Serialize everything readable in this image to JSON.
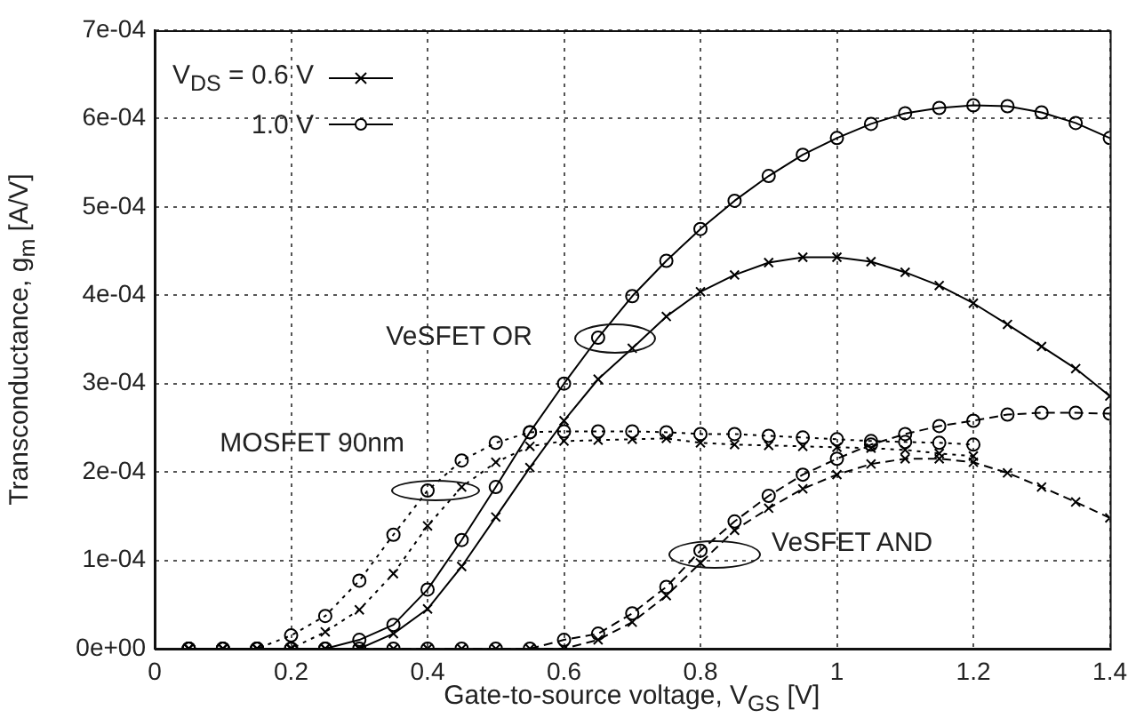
{
  "chart_data": {
    "type": "line",
    "xlabel": "Gate-to-source voltage, V$_{GS}$ [V]",
    "ylabel": "Transconductance, g$_{m}$ [A/V]",
    "x": [
      0.05,
      0.1,
      0.15,
      0.2,
      0.25,
      0.3,
      0.35,
      0.4,
      0.45,
      0.5,
      0.55,
      0.6,
      0.65,
      0.7,
      0.75,
      0.8,
      0.85,
      0.9,
      0.95,
      1.0,
      1.05,
      1.1,
      1.15,
      1.2,
      1.25,
      1.3,
      1.35,
      1.4
    ],
    "series": [
      {
        "name": "V$_{DS}$ = 0.6 V",
        "color": "#000000",
        "marker": "cross",
        "line_style": "solid",
        "values": [
          0,
          0,
          0,
          0,
          0,
          0,
          1.7e-05,
          4.5e-05,
          9.3e-05,
          0.000149,
          0.000205,
          0.000258,
          0.000305,
          0.00034,
          0.000376,
          0.000404,
          0.000423,
          0.000437,
          0.000443,
          0.000443,
          0.000438,
          0.000426,
          0.000411,
          0.000391,
          0.000367,
          0.000342,
          0.000317,
          0.000286
        ]
      },
      {
        "name": "1.0 V",
        "color": "#000000",
        "marker": "circle",
        "line_style": "solid",
        "values": [
          0,
          0,
          0,
          0,
          0,
          1e-05,
          2.7e-05,
          6.7e-05,
          0.000123,
          0.000183,
          0.000245,
          0.0003,
          0.000352,
          0.000399,
          0.000439,
          0.000475,
          0.000507,
          0.000535,
          0.000559,
          0.000578,
          0.000594,
          0.000606,
          0.000612,
          0.000615,
          0.000614,
          0.000607,
          0.000595,
          0.000578
        ]
      },
      {
        "color": "#000000",
        "marker": "cross",
        "line_style": "dotted",
        "values": [
          0,
          0,
          0,
          0,
          1.9e-05,
          4.4e-05,
          8.5e-05,
          0.000139,
          0.000183,
          0.000211,
          0.000229,
          0.000235,
          0.000236,
          0.000237,
          0.000238,
          0.000233,
          0.000231,
          0.00023,
          0.000229,
          0.000228,
          0.000227,
          0.000225,
          0.000221,
          0.000218,
          null,
          null,
          null,
          null
        ]
      },
      {
        "color": "#000000",
        "marker": "circle",
        "line_style": "dotted",
        "values": [
          0,
          0,
          0,
          1.5e-05,
          3.7e-05,
          7.7e-05,
          0.000129,
          0.000179,
          0.000213,
          0.000233,
          0.000245,
          0.000246,
          0.000246,
          0.000246,
          0.000245,
          0.000243,
          0.000243,
          0.000241,
          0.000239,
          0.000237,
          0.000235,
          0.000234,
          0.000233,
          0.000231,
          null,
          null,
          null,
          null
        ]
      },
      {
        "color": "#000000",
        "marker": "cross",
        "line_style": "dashed",
        "values": [
          0,
          0,
          0,
          0,
          0,
          0,
          0,
          0,
          0,
          0,
          0,
          0,
          1e-05,
          3e-05,
          6e-05,
          9.7e-05,
          0.000134,
          0.000159,
          0.000181,
          0.000197,
          0.000209,
          0.000215,
          0.000215,
          0.000211,
          0.000199,
          0.000183,
          0.000166,
          0.000148
        ]
      },
      {
        "color": "#000000",
        "marker": "circle",
        "line_style": "dashed",
        "values": [
          0,
          0,
          0,
          0,
          0,
          0,
          0,
          0,
          0,
          0,
          0,
          1e-05,
          1.7e-05,
          4e-05,
          7e-05,
          0.000111,
          0.000144,
          0.000173,
          0.000197,
          0.000215,
          0.000231,
          0.000243,
          0.000252,
          0.000258,
          0.000265,
          0.000267,
          0.000267,
          0.000266
        ]
      }
    ],
    "xlim": [
      0,
      1.4
    ],
    "xticks": [
      0,
      0.2,
      0.4,
      0.6,
      0.8,
      1,
      1.2,
      1.4
    ],
    "ylim": [
      0,
      0.0007
    ],
    "yticks": [
      {
        "value": 0,
        "label": "0e+00"
      },
      {
        "value": 0.0001,
        "label": "1e-04"
      },
      {
        "value": 0.0002,
        "label": "2e-04"
      },
      {
        "value": 0.0003,
        "label": "3e-04"
      },
      {
        "value": 0.0004,
        "label": "4e-04"
      },
      {
        "value": 0.0005,
        "label": "5e-04"
      },
      {
        "value": 0.0006,
        "label": "6e-04"
      },
      {
        "value": 0.0007,
        "label": "7e-04"
      }
    ],
    "annotations": [
      {
        "text": "VeSFET OR",
        "x": 0.65,
        "y": 0.000352
      },
      {
        "text": "MOSFET 90nm",
        "x": 0.4,
        "y": 0.000179
      },
      {
        "text": "VeSFET AND",
        "x": 0.8,
        "y": 0.000111
      }
    ],
    "grid": true,
    "legend": "top left"
  }
}
